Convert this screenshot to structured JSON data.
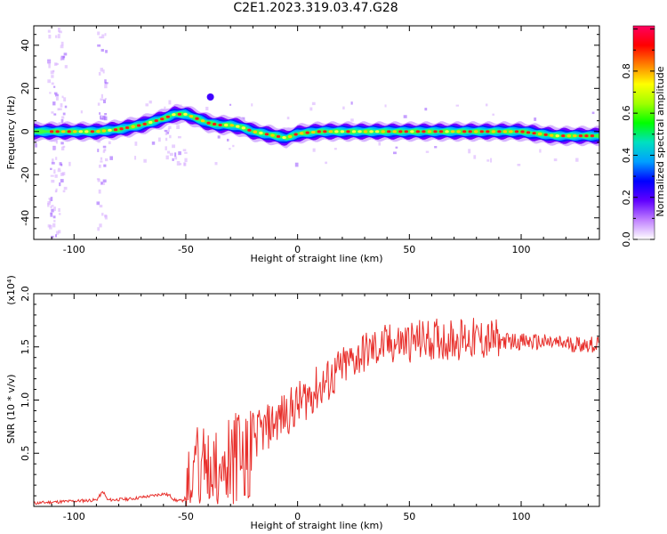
{
  "title": "C2E1.2023.319.03.47.G28",
  "chart_data": [
    {
      "type": "heatmap",
      "xlabel": "Height of straight line (km)",
      "ylabel": "Frequency (Hz)",
      "xlim": [
        -118,
        135
      ],
      "ylim": [
        -50,
        49
      ],
      "xticks": [
        -100,
        -50,
        0,
        50,
        100
      ],
      "yticks": [
        -40,
        -20,
        0,
        20,
        40
      ],
      "colorbar": {
        "label": "Normalized spectral amplitude",
        "range": [
          0,
          1
        ],
        "ticks": [
          "0.0",
          "0.2",
          "0.4",
          "0.6",
          "0.8"
        ],
        "colors": [
          "#ffffff",
          "#c080ff",
          "#6000ff",
          "#0000ff",
          "#00a0ff",
          "#00e0c0",
          "#00ff00",
          "#a0ff00",
          "#ffff00",
          "#ff8000",
          "#ff0000",
          "#ff0060"
        ]
      },
      "ridge": {
        "x": [
          -118,
          -100,
          -90,
          -80,
          -70,
          -60,
          -55,
          -50,
          -45,
          -40,
          -35,
          -30,
          -25,
          -20,
          -10,
          -5,
          0,
          10,
          20,
          40,
          60,
          80,
          100,
          115,
          135
        ],
        "y": [
          0,
          0,
          0,
          1,
          3,
          6,
          8,
          8,
          6,
          4,
          3,
          3,
          2,
          0,
          -2,
          -3,
          -1,
          0,
          0,
          0,
          0,
          0,
          0,
          -2,
          -2
        ]
      }
    },
    {
      "type": "line",
      "xlabel": "Height of straight line (km)",
      "ylabel": "SNR (10 * v/v)",
      "y_multiplier": "(x10⁴)",
      "xlim": [
        -118,
        135
      ],
      "ylim": [
        0,
        2.0
      ],
      "xticks": [
        -100,
        -50,
        0,
        50,
        100
      ],
      "yticks": [
        "0.5",
        "1.0",
        "1.5",
        "2.0"
      ],
      "color": "#e8302c",
      "series": [
        {
          "x": [
            -118,
            -110,
            -100,
            -90,
            -87,
            -85,
            -75,
            -65,
            -60,
            -57,
            -55,
            -52,
            -50,
            -47,
            -45,
            -42,
            -40,
            -37,
            -35,
            -30,
            -25,
            -20,
            -15,
            -10,
            -5,
            0,
            5,
            10,
            15,
            20,
            25,
            30,
            40,
            50,
            60,
            70,
            75,
            80,
            90,
            100,
            110,
            120,
            135
          ],
          "y": [
            0.03,
            0.04,
            0.05,
            0.06,
            0.14,
            0.06,
            0.07,
            0.1,
            0.12,
            0.1,
            0.06,
            0.05,
            0.08,
            0.4,
            0.55,
            0.45,
            0.35,
            0.4,
            0.45,
            0.55,
            0.62,
            0.65,
            0.72,
            0.8,
            0.88,
            0.95,
            1.05,
            1.12,
            1.2,
            1.3,
            1.38,
            1.45,
            1.52,
            1.55,
            1.57,
            1.57,
            1.58,
            1.57,
            1.56,
            1.55,
            1.54,
            1.53,
            1.52
          ]
        }
      ]
    }
  ]
}
